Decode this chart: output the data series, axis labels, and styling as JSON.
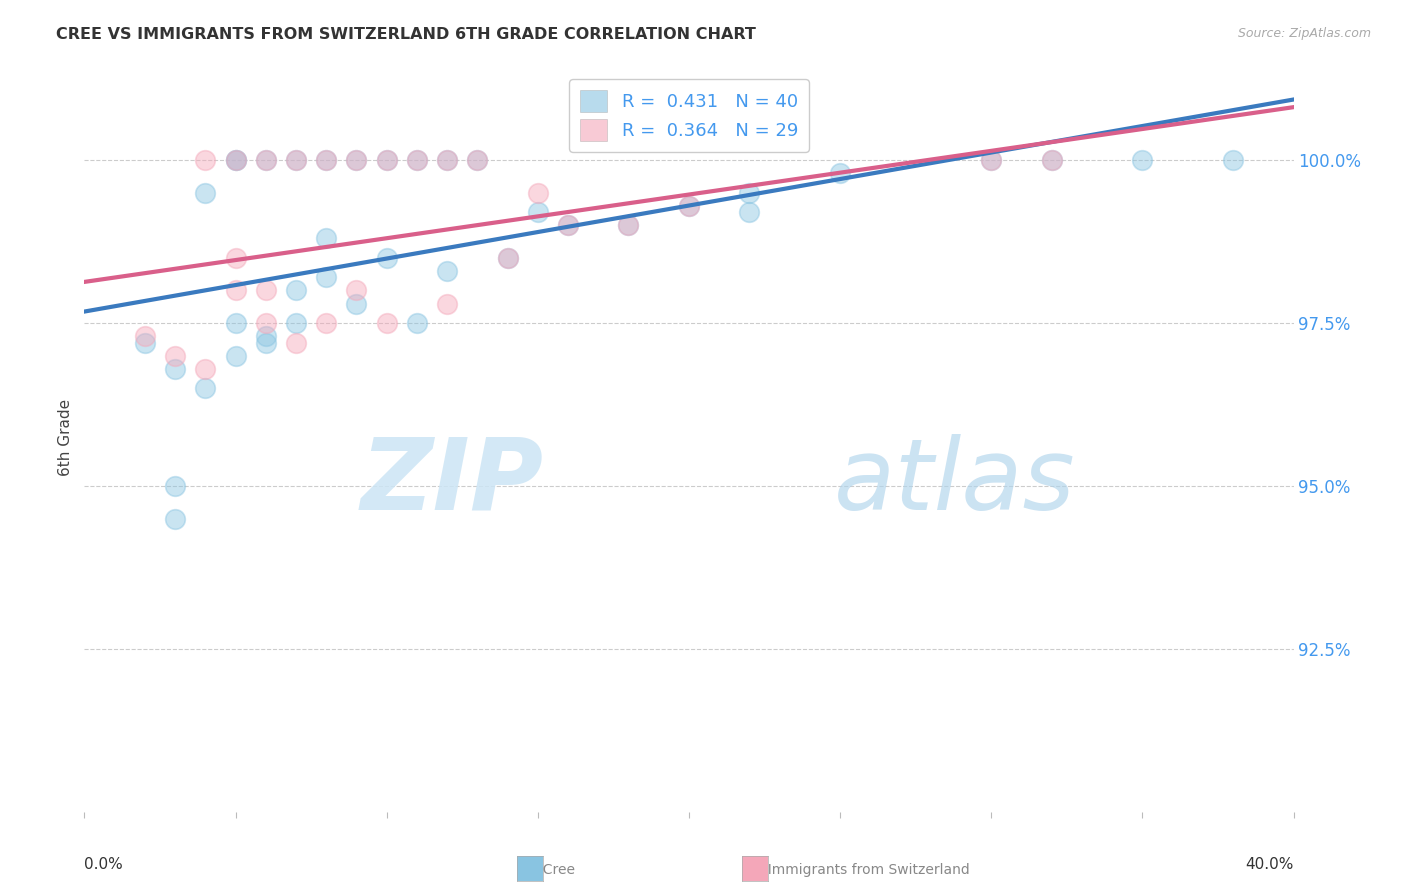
{
  "title": "CREE VS IMMIGRANTS FROM SWITZERLAND 6TH GRADE CORRELATION CHART",
  "source": "Source: ZipAtlas.com",
  "ylabel": "6th Grade",
  "ytick_values": [
    92.5,
    95.0,
    97.5,
    100.0
  ],
  "xlim": [
    0.0,
    40.0
  ],
  "ylim": [
    90.0,
    101.5
  ],
  "legend_xlabel_blue": "Cree",
  "legend_xlabel_pink": "Immigrants from Switzerland",
  "blue_color": "#89c4e1",
  "pink_color": "#f4a7b9",
  "blue_line_color": "#3a7abf",
  "pink_line_color": "#d95f8a",
  "blue_x": [
    5,
    8,
    10,
    12,
    5,
    7,
    9,
    11,
    13,
    6,
    4,
    15,
    18,
    20,
    22,
    25,
    8,
    10,
    12,
    14,
    5,
    6,
    7,
    9,
    11,
    16,
    30,
    32,
    35,
    38,
    2,
    3,
    4,
    5,
    6,
    7,
    8,
    3,
    3,
    22
  ],
  "blue_y": [
    100.0,
    100.0,
    100.0,
    100.0,
    100.0,
    100.0,
    100.0,
    100.0,
    100.0,
    100.0,
    99.5,
    99.2,
    99.0,
    99.3,
    99.5,
    99.8,
    98.8,
    98.5,
    98.3,
    98.5,
    97.5,
    97.3,
    98.0,
    97.8,
    97.5,
    99.0,
    100.0,
    100.0,
    100.0,
    100.0,
    97.2,
    96.8,
    96.5,
    97.0,
    97.2,
    97.5,
    98.2,
    95.0,
    94.5,
    99.2
  ],
  "pink_x": [
    5,
    8,
    10,
    12,
    6,
    9,
    11,
    7,
    4,
    13,
    15,
    18,
    20,
    5,
    6,
    8,
    30,
    32,
    2,
    3,
    4,
    5,
    6,
    7,
    9,
    12,
    14,
    10,
    16
  ],
  "pink_y": [
    100.0,
    100.0,
    100.0,
    100.0,
    100.0,
    100.0,
    100.0,
    100.0,
    100.0,
    100.0,
    99.5,
    99.0,
    99.3,
    98.5,
    98.0,
    97.5,
    100.0,
    100.0,
    97.3,
    97.0,
    96.8,
    98.0,
    97.5,
    97.2,
    98.0,
    97.8,
    98.5,
    97.5,
    99.0
  ],
  "blue_r": 0.431,
  "blue_n": 40,
  "pink_r": 0.364,
  "pink_n": 29,
  "marker_size": 200,
  "marker_lw": 1.2,
  "marker_alpha": 0.45,
  "line_width": 3.0,
  "grid_color": "#cccccc",
  "tick_color": "#4499ee",
  "title_color": "#333333",
  "source_color": "#aaaaaa",
  "ylabel_color": "#444444"
}
